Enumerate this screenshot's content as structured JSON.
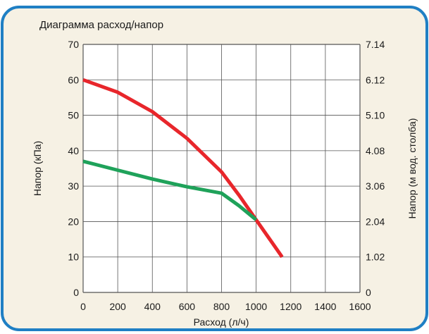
{
  "colors": {
    "frame_border": "#1f7fc4",
    "frame_fill": "#f6f1e4",
    "plot_fill": "#ffffff",
    "grid": "#555555",
    "text": "#1a1a1a",
    "series_red": "#e8262b",
    "series_green": "#1fa25a"
  },
  "chart_data": {
    "type": "line",
    "title": "Диаграмма расход/напор",
    "xlabel": "Расход (л/ч)",
    "ylabel": "Напор (кПа)",
    "ylabel_right": "Напор (м вод. столба)",
    "xlim": [
      0,
      1600
    ],
    "ylim": [
      0,
      70
    ],
    "x_ticks": [
      "0",
      "200",
      "400",
      "600",
      "800",
      "1000",
      "1200",
      "1400",
      "1600"
    ],
    "y_ticks": [
      "0",
      "10",
      "20",
      "30",
      "40",
      "50",
      "60",
      "70"
    ],
    "y_ticks_right": [
      "0",
      "1.02",
      "2.04",
      "3.06",
      "4.08",
      "5.10",
      "6.12",
      "7.14"
    ],
    "grid": true,
    "series": [
      {
        "color": "#e8262b",
        "points": [
          [
            0,
            60
          ],
          [
            200,
            56.5
          ],
          [
            400,
            51
          ],
          [
            600,
            43.5
          ],
          [
            800,
            34
          ],
          [
            900,
            27.5
          ],
          [
            1000,
            20.5
          ],
          [
            1150,
            10
          ]
        ]
      },
      {
        "color": "#1fa25a",
        "points": [
          [
            0,
            37
          ],
          [
            200,
            34.5
          ],
          [
            400,
            32
          ],
          [
            600,
            29.8
          ],
          [
            800,
            28
          ],
          [
            900,
            24.5
          ],
          [
            1000,
            20.5
          ]
        ]
      }
    ]
  }
}
